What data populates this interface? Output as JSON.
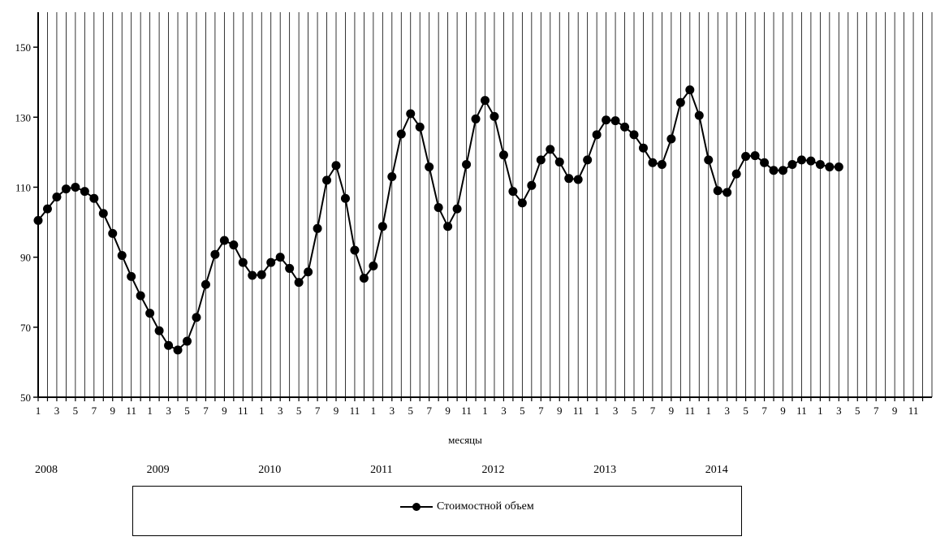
{
  "chart_data": {
    "type": "line",
    "xlabel": "месяцы",
    "ylabel": "",
    "ylim": [
      50,
      160
    ],
    "yticks": [
      50,
      70,
      90,
      110,
      130,
      150
    ],
    "grid": "vertical lines at every month",
    "legend_position": "bottom",
    "start": {
      "year": 2008,
      "month": 1
    },
    "months_shown": 96,
    "years": [
      "2008",
      "2009",
      "2010",
      "2011",
      "2012",
      "2013",
      "2014"
    ],
    "month_tick_labels": [
      "1",
      "3",
      "5",
      "7",
      "9",
      "11"
    ],
    "series": [
      {
        "name": "Стоимостной объем",
        "color": "#000000",
        "marker": "circle",
        "values": [
          100.5,
          103.8,
          107.2,
          109.5,
          110.0,
          108.8,
          106.8,
          102.5,
          96.8,
          90.5,
          84.5,
          79.0,
          74.0,
          69.0,
          64.8,
          63.5,
          66.0,
          72.8,
          82.2,
          90.8,
          94.8,
          93.5,
          88.5,
          84.8,
          85.0,
          88.5,
          90.0,
          86.8,
          82.8,
          85.8,
          98.2,
          112.0,
          116.2,
          106.8,
          92.0,
          84.0,
          87.5,
          98.8,
          113.0,
          125.2,
          131.0,
          127.2,
          115.8,
          104.2,
          98.8,
          103.8,
          116.5,
          129.5,
          134.8,
          130.2,
          119.2,
          108.8,
          105.5,
          110.5,
          117.8,
          120.8,
          117.2,
          112.5,
          112.2,
          117.8,
          125.0,
          129.2,
          129.0,
          127.2,
          125.0,
          121.2,
          117.0,
          116.5,
          123.8,
          134.2,
          137.8,
          130.5,
          117.8,
          109.0,
          108.5,
          113.8,
          118.8,
          119.0,
          117.0,
          114.8,
          114.8,
          116.5,
          117.8,
          117.5,
          116.5,
          115.8,
          115.8
        ]
      }
    ]
  }
}
